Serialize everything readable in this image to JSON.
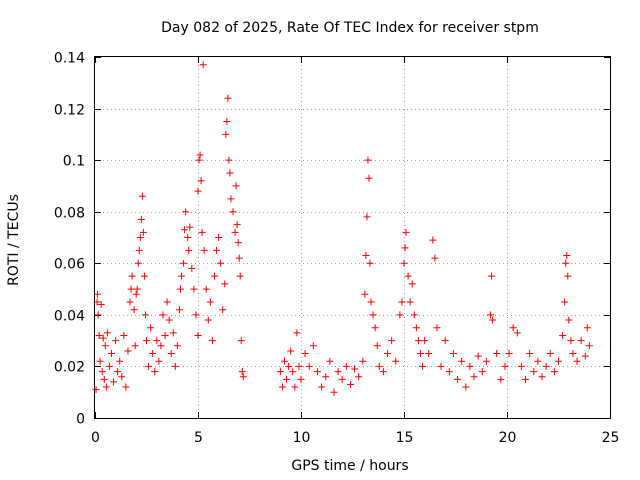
{
  "chart_data": {
    "type": "scatter",
    "title": "Day 082 of 2025, Rate Of TEC Index for receiver stpm",
    "xlabel": "GPS time / hours",
    "ylabel": "ROTI / TECUs",
    "xlim": [
      0,
      25
    ],
    "ylim": [
      0,
      0.14
    ],
    "xticks": [
      0,
      5,
      10,
      15,
      20,
      25
    ],
    "yticks": [
      0,
      0.02,
      0.04,
      0.06,
      0.08,
      0.1,
      0.12,
      0.14
    ],
    "xtick_labels": [
      "0",
      "5",
      "10",
      "15",
      "20",
      "25"
    ],
    "ytick_labels": [
      "0",
      "0.02",
      "0.04",
      "0.06",
      "0.08",
      "0.1",
      "0.12",
      "0.14"
    ],
    "grid": true,
    "marker": "+",
    "color": "#ff0000",
    "series": [
      {
        "name": "ROTI",
        "points": [
          [
            0.05,
            0.011
          ],
          [
            0.1,
            0.045
          ],
          [
            0.12,
            0.048
          ],
          [
            0.15,
            0.04
          ],
          [
            0.2,
            0.032
          ],
          [
            0.25,
            0.022
          ],
          [
            0.3,
            0.044
          ],
          [
            0.35,
            0.018
          ],
          [
            0.4,
            0.031
          ],
          [
            0.45,
            0.015
          ],
          [
            0.5,
            0.028
          ],
          [
            0.55,
            0.012
          ],
          [
            0.6,
            0.033
          ],
          [
            0.7,
            0.02
          ],
          [
            0.8,
            0.025
          ],
          [
            0.9,
            0.014
          ],
          [
            1.0,
            0.03
          ],
          [
            1.1,
            0.018
          ],
          [
            1.2,
            0.022
          ],
          [
            1.3,
            0.016
          ],
          [
            1.4,
            0.032
          ],
          [
            1.5,
            0.012
          ],
          [
            1.6,
            0.026
          ],
          [
            1.7,
            0.045
          ],
          [
            1.75,
            0.05
          ],
          [
            1.8,
            0.055
          ],
          [
            1.9,
            0.042
          ],
          [
            1.95,
            0.028
          ],
          [
            2.0,
            0.048
          ],
          [
            2.05,
            0.05
          ],
          [
            2.1,
            0.06
          ],
          [
            2.15,
            0.065
          ],
          [
            2.2,
            0.07
          ],
          [
            2.25,
            0.077
          ],
          [
            2.3,
            0.086
          ],
          [
            2.35,
            0.072
          ],
          [
            2.4,
            0.055
          ],
          [
            2.45,
            0.04
          ],
          [
            2.5,
            0.03
          ],
          [
            2.6,
            0.02
          ],
          [
            2.7,
            0.035
          ],
          [
            2.8,
            0.025
          ],
          [
            2.9,
            0.018
          ],
          [
            3.0,
            0.03
          ],
          [
            3.1,
            0.022
          ],
          [
            3.2,
            0.028
          ],
          [
            3.3,
            0.04
          ],
          [
            3.4,
            0.032
          ],
          [
            3.5,
            0.045
          ],
          [
            3.6,
            0.038
          ],
          [
            3.7,
            0.025
          ],
          [
            3.8,
            0.033
          ],
          [
            3.9,
            0.02
          ],
          [
            4.0,
            0.028
          ],
          [
            4.1,
            0.042
          ],
          [
            4.15,
            0.05
          ],
          [
            4.2,
            0.055
          ],
          [
            4.3,
            0.06
          ],
          [
            4.35,
            0.073
          ],
          [
            4.4,
            0.08
          ],
          [
            4.5,
            0.07
          ],
          [
            4.55,
            0.065
          ],
          [
            4.6,
            0.074
          ],
          [
            4.7,
            0.058
          ],
          [
            4.8,
            0.05
          ],
          [
            4.9,
            0.04
          ],
          [
            5.0,
            0.032
          ],
          [
            5.0,
            0.088
          ],
          [
            5.05,
            0.1
          ],
          [
            5.1,
            0.102
          ],
          [
            5.15,
            0.092
          ],
          [
            5.2,
            0.072
          ],
          [
            5.25,
            0.137
          ],
          [
            5.3,
            0.065
          ],
          [
            5.4,
            0.05
          ],
          [
            5.5,
            0.038
          ],
          [
            5.6,
            0.045
          ],
          [
            5.7,
            0.03
          ],
          [
            5.8,
            0.055
          ],
          [
            5.9,
            0.065
          ],
          [
            6.0,
            0.07
          ],
          [
            6.1,
            0.06
          ],
          [
            6.2,
            0.042
          ],
          [
            6.3,
            0.052
          ],
          [
            6.35,
            0.11
          ],
          [
            6.4,
            0.115
          ],
          [
            6.45,
            0.124
          ],
          [
            6.5,
            0.1
          ],
          [
            6.55,
            0.095
          ],
          [
            6.6,
            0.085
          ],
          [
            6.7,
            0.08
          ],
          [
            6.8,
            0.072
          ],
          [
            6.85,
            0.09
          ],
          [
            6.9,
            0.075
          ],
          [
            6.95,
            0.068
          ],
          [
            7.0,
            0.062
          ],
          [
            7.05,
            0.055
          ],
          [
            7.1,
            0.03
          ],
          [
            7.15,
            0.018
          ],
          [
            7.2,
            0.016
          ],
          [
            9.0,
            0.018
          ],
          [
            9.1,
            0.012
          ],
          [
            9.2,
            0.022
          ],
          [
            9.3,
            0.015
          ],
          [
            9.4,
            0.02
          ],
          [
            9.5,
            0.026
          ],
          [
            9.6,
            0.018
          ],
          [
            9.7,
            0.012
          ],
          [
            9.8,
            0.033
          ],
          [
            9.9,
            0.02
          ],
          [
            10.0,
            0.015
          ],
          [
            10.2,
            0.025
          ],
          [
            10.4,
            0.02
          ],
          [
            10.6,
            0.028
          ],
          [
            10.8,
            0.018
          ],
          [
            11.0,
            0.012
          ],
          [
            11.2,
            0.016
          ],
          [
            11.4,
            0.022
          ],
          [
            11.6,
            0.01
          ],
          [
            11.8,
            0.018
          ],
          [
            12.0,
            0.015
          ],
          [
            12.2,
            0.02
          ],
          [
            12.4,
            0.013
          ],
          [
            12.6,
            0.019
          ],
          [
            12.8,
            0.016
          ],
          [
            13.0,
            0.022
          ],
          [
            13.1,
            0.048
          ],
          [
            13.15,
            0.063
          ],
          [
            13.2,
            0.078
          ],
          [
            13.25,
            0.1
          ],
          [
            13.3,
            0.093
          ],
          [
            13.35,
            0.06
          ],
          [
            13.4,
            0.045
          ],
          [
            13.5,
            0.04
          ],
          [
            13.6,
            0.035
          ],
          [
            13.7,
            0.028
          ],
          [
            13.8,
            0.02
          ],
          [
            14.0,
            0.018
          ],
          [
            14.2,
            0.025
          ],
          [
            14.4,
            0.03
          ],
          [
            14.6,
            0.022
          ],
          [
            14.8,
            0.04
          ],
          [
            14.9,
            0.045
          ],
          [
            15.0,
            0.06
          ],
          [
            15.05,
            0.066
          ],
          [
            15.1,
            0.072
          ],
          [
            15.2,
            0.055
          ],
          [
            15.3,
            0.045
          ],
          [
            15.4,
            0.052
          ],
          [
            15.5,
            0.04
          ],
          [
            15.6,
            0.035
          ],
          [
            15.7,
            0.03
          ],
          [
            15.8,
            0.025
          ],
          [
            15.9,
            0.02
          ],
          [
            16.0,
            0.03
          ],
          [
            16.2,
            0.025
          ],
          [
            16.4,
            0.069
          ],
          [
            16.5,
            0.062
          ],
          [
            16.6,
            0.035
          ],
          [
            16.8,
            0.02
          ],
          [
            17.0,
            0.03
          ],
          [
            17.2,
            0.018
          ],
          [
            17.4,
            0.025
          ],
          [
            17.6,
            0.015
          ],
          [
            17.8,
            0.022
          ],
          [
            18.0,
            0.012
          ],
          [
            18.2,
            0.02
          ],
          [
            18.4,
            0.016
          ],
          [
            18.6,
            0.024
          ],
          [
            18.8,
            0.018
          ],
          [
            19.0,
            0.022
          ],
          [
            19.2,
            0.04
          ],
          [
            19.25,
            0.055
          ],
          [
            19.3,
            0.038
          ],
          [
            19.5,
            0.025
          ],
          [
            19.7,
            0.015
          ],
          [
            19.9,
            0.02
          ],
          [
            20.1,
            0.025
          ],
          [
            20.3,
            0.035
          ],
          [
            20.5,
            0.033
          ],
          [
            20.7,
            0.02
          ],
          [
            20.9,
            0.015
          ],
          [
            21.1,
            0.025
          ],
          [
            21.3,
            0.018
          ],
          [
            21.5,
            0.022
          ],
          [
            21.7,
            0.016
          ],
          [
            21.9,
            0.02
          ],
          [
            22.1,
            0.025
          ],
          [
            22.3,
            0.018
          ],
          [
            22.5,
            0.022
          ],
          [
            22.7,
            0.032
          ],
          [
            22.8,
            0.045
          ],
          [
            22.85,
            0.06
          ],
          [
            22.9,
            0.063
          ],
          [
            22.95,
            0.055
          ],
          [
            23.0,
            0.038
          ],
          [
            23.1,
            0.03
          ],
          [
            23.2,
            0.025
          ],
          [
            23.4,
            0.022
          ],
          [
            23.6,
            0.03
          ],
          [
            23.8,
            0.024
          ],
          [
            23.9,
            0.035
          ],
          [
            24.0,
            0.028
          ]
        ]
      }
    ]
  }
}
